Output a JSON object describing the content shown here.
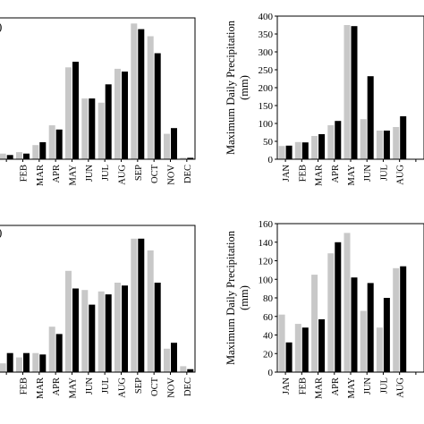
{
  "colors": {
    "series_a": "#c8c8c8",
    "series_b": "#000000",
    "axis": "#000000"
  },
  "chart_data": [
    {
      "id": "top-left",
      "type": "bar",
      "panel_label": ")",
      "ylabel": "",
      "show_y_axis_ticks": false,
      "ylim": [
        0,
        1
      ],
      "categories": [
        "",
        "FEB",
        "MAR",
        "APR",
        "MAY",
        "JUN",
        "JUL",
        "AUG",
        "SEP",
        "OCT",
        "NOV",
        "DEC"
      ],
      "series": [
        {
          "values": [
            0.04,
            0.05,
            0.1,
            0.24,
            0.65,
            0.43,
            0.4,
            0.64,
            0.96,
            0.87,
            0.18,
            0.01
          ]
        },
        {
          "values": [
            0.03,
            0.04,
            0.12,
            0.21,
            0.69,
            0.43,
            0.53,
            0.62,
            0.92,
            0.75,
            0.22,
            0.01
          ]
        }
      ]
    },
    {
      "id": "top-right",
      "type": "bar",
      "panel_label": "",
      "ylabel": "Maximum  Daily  Precipitation (mm)",
      "show_y_axis_ticks": true,
      "ylim": [
        0,
        400
      ],
      "yticks": [
        0,
        50,
        100,
        150,
        200,
        250,
        300,
        350,
        400
      ],
      "categories": [
        "JAN",
        "FEB",
        "MAR",
        "APR",
        "MAY",
        "JUN",
        "JUL",
        "AUG",
        ""
      ],
      "series": [
        {
          "values": [
            37,
            48,
            65,
            95,
            375,
            112,
            80,
            90,
            0
          ]
        },
        {
          "values": [
            38,
            47,
            70,
            107,
            372,
            232,
            80,
            120,
            0
          ]
        }
      ]
    },
    {
      "id": "bottom-left",
      "type": "bar",
      "panel_label": ")",
      "ylabel": "",
      "show_y_axis_ticks": false,
      "ylim": [
        0,
        1
      ],
      "categories": [
        "",
        "FEB",
        "MAR",
        "APR",
        "MAY",
        "JUN",
        "JUL",
        "AUG",
        "SEP",
        "OCT",
        "NOV",
        "DEC"
      ],
      "series": [
        {
          "values": [
            0.06,
            0.1,
            0.13,
            0.31,
            0.69,
            0.56,
            0.55,
            0.61,
            0.91,
            0.83,
            0.16,
            0.04
          ]
        },
        {
          "values": [
            0.13,
            0.13,
            0.12,
            0.26,
            0.57,
            0.46,
            0.53,
            0.59,
            0.91,
            0.61,
            0.2,
            0.02
          ]
        }
      ]
    },
    {
      "id": "bottom-right",
      "type": "bar",
      "panel_label": "",
      "ylabel": "Maximum  Daily  Precipitation (mm)",
      "show_y_axis_ticks": true,
      "ylim": [
        0,
        160
      ],
      "yticks": [
        0,
        20,
        40,
        60,
        80,
        100,
        120,
        140,
        160
      ],
      "categories": [
        "JAN",
        "FEB",
        "MAR",
        "APR",
        "MAY",
        "JUN",
        "JUL",
        "AUG",
        ""
      ],
      "series": [
        {
          "values": [
            62,
            52,
            105,
            128,
            150,
            66,
            48,
            112,
            0
          ]
        },
        {
          "values": [
            32,
            48,
            57,
            140,
            102,
            96,
            80,
            114,
            0
          ]
        }
      ]
    }
  ]
}
